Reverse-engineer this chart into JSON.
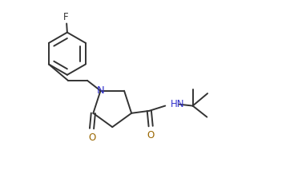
{
  "bg_color": "#ffffff",
  "line_color": "#333333",
  "N_color": "#3333cc",
  "O_color": "#996600",
  "F_color": "#333333",
  "bond_lw": 1.4,
  "font_size": 8.5,
  "figsize": [
    3.82,
    2.23
  ],
  "dpi": 100,
  "xlim": [
    0,
    10
  ],
  "ylim": [
    0,
    6
  ]
}
